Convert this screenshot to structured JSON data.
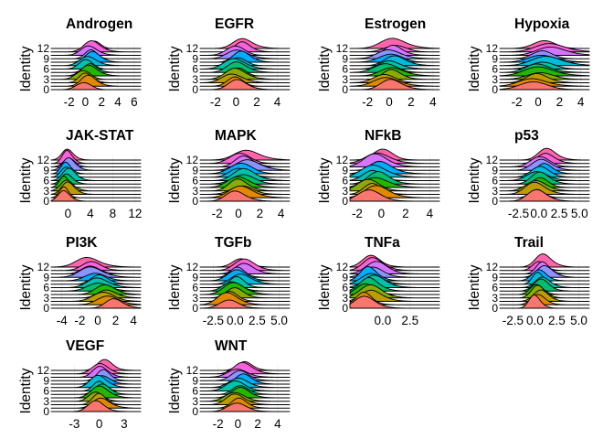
{
  "chart_data": {
    "type": "ridgeline",
    "ylabel": "Identity",
    "identity_levels": [
      "0",
      "1",
      "2",
      "3",
      "4",
      "5",
      "6",
      "7",
      "8",
      "9",
      "10",
      "11",
      "12"
    ],
    "identity_ticks_shown": [
      "0",
      "3",
      "6",
      "9",
      "12"
    ],
    "colors": [
      "#F8766D",
      "#E18A00",
      "#BE9C00",
      "#8CAB00",
      "#24B700",
      "#00BE70",
      "#00C1AB",
      "#00BBDA",
      "#00ACFC",
      "#8B93FF",
      "#D575FE",
      "#F962DD",
      "#FF65AC"
    ],
    "panels": [
      {
        "title": "Androgen",
        "xlim": [
          -4.2,
          6.8
        ],
        "ticks": [
          -2,
          0,
          2,
          4,
          6
        ],
        "tick_labels": [
          "-2",
          "0",
          "2",
          "4",
          "6"
        ],
        "center": 0.3,
        "shift": 0.08,
        "width": 0.8,
        "height": 2.4
      },
      {
        "title": "EGFR",
        "xlim": [
          -3.5,
          5.2
        ],
        "ticks": [
          -2,
          0,
          2,
          4
        ],
        "tick_labels": [
          "-2",
          "0",
          "2",
          "4"
        ],
        "center": 0.0,
        "shift": 0.05,
        "width": 0.8,
        "height": 2.4
      },
      {
        "title": "Estrogen",
        "xlim": [
          -3.6,
          4.6
        ],
        "ticks": [
          -2,
          0,
          2,
          4
        ],
        "tick_labels": [
          "-2",
          "0",
          "2",
          "4"
        ],
        "center": 0.0,
        "shift": 0.05,
        "width": 0.9,
        "height": 2.2
      },
      {
        "title": "Hypoxia",
        "xlim": [
          -3.6,
          4.8
        ],
        "ticks": [
          -2,
          0,
          2,
          4
        ],
        "tick_labels": [
          "-2",
          "0",
          "2",
          "4"
        ],
        "center": 0.2,
        "shift": 0.12,
        "width": 1.1,
        "height": 2.0
      },
      {
        "title": "JAK-STAT",
        "xlim": [
          -3.0,
          13.0
        ],
        "ticks": [
          0,
          4,
          8,
          12
        ],
        "tick_labels": [
          "0",
          "4",
          "8",
          "12"
        ],
        "center": -0.3,
        "shift": 0.05,
        "width": 0.9,
        "height": 2.8
      },
      {
        "title": "MAPK",
        "xlim": [
          -3.6,
          4.8
        ],
        "ticks": [
          -2,
          0,
          2,
          4
        ],
        "tick_labels": [
          "-2",
          "0",
          "2",
          "4"
        ],
        "center": 0.2,
        "shift": 0.05,
        "width": 0.9,
        "height": 2.6
      },
      {
        "title": "NFkB",
        "xlim": [
          -2.6,
          4.8
        ],
        "ticks": [
          -2,
          0,
          2,
          4
        ],
        "tick_labels": [
          "-2",
          "0",
          "2",
          "4"
        ],
        "center": -0.6,
        "shift": 0.06,
        "width": 0.8,
        "height": 2.8
      },
      {
        "title": "p53",
        "xlim": [
          -4.8,
          6.2
        ],
        "ticks": [
          -2.5,
          0,
          2.5,
          5
        ],
        "tick_labels": [
          "-2.5",
          "0.0",
          "2.5",
          "5.0"
        ],
        "center": 0.0,
        "shift": 0.1,
        "width": 1.0,
        "height": 2.6
      },
      {
        "title": "PI3K",
        "xlim": [
          -5.2,
          4.8
        ],
        "ticks": [
          -4,
          -2,
          0,
          2,
          4
        ],
        "tick_labels": [
          "-4",
          "-2",
          "0",
          "2",
          "4"
        ],
        "center": 0.0,
        "shift": -0.22,
        "width": 1.0,
        "height": 2.2
      },
      {
        "title": "TGFb",
        "xlim": [
          -4.0,
          6.2
        ],
        "ticks": [
          -2.5,
          0,
          2.5,
          5
        ],
        "tick_labels": [
          "-2.5",
          "0.0",
          "2.5",
          "5.0"
        ],
        "center": 0.0,
        "shift": 0.15,
        "width": 0.9,
        "height": 2.6
      },
      {
        "title": "TNFa",
        "xlim": [
          -3.0,
          5.2
        ],
        "ticks": [
          0,
          2.5
        ],
        "tick_labels": [
          "0.0",
          "2.5"
        ],
        "center": -1.2,
        "shift": 0.06,
        "width": 0.8,
        "height": 3.0
      },
      {
        "title": "Trail",
        "xlim": [
          -4.0,
          6.2
        ],
        "ticks": [
          -2.5,
          0,
          2.5,
          5
        ],
        "tick_labels": [
          "-2.5",
          "0.0",
          "2.5",
          "5.0"
        ],
        "center": 0.5,
        "shift": 0.05,
        "width": 0.7,
        "height": 2.8
      },
      {
        "title": "VEGF",
        "xlim": [
          -5.8,
          5.0
        ],
        "ticks": [
          -3,
          0,
          3
        ],
        "tick_labels": [
          "-3",
          "0",
          "3"
        ],
        "center": 0.0,
        "shift": 0.05,
        "width": 0.8,
        "height": 2.6
      },
      {
        "title": "WNT",
        "xlim": [
          -3.8,
          5.2
        ],
        "ticks": [
          -2,
          0,
          2,
          4
        ],
        "tick_labels": [
          "-2",
          "0",
          "2",
          "4"
        ],
        "center": 0.0,
        "shift": 0.05,
        "width": 0.8,
        "height": 2.4
      }
    ]
  }
}
